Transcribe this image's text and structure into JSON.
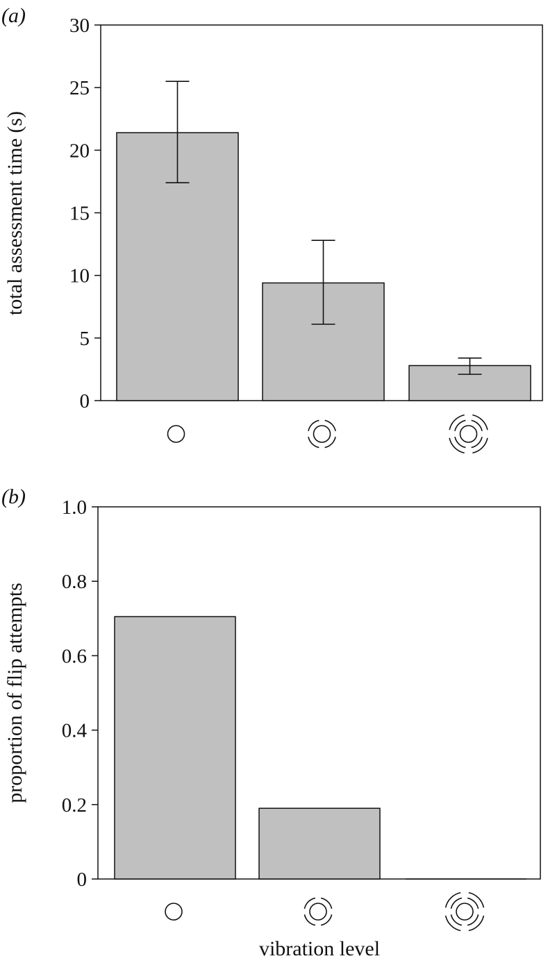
{
  "colors": {
    "bar_fill": "#c0c0c0",
    "stroke": "#111111",
    "background": "#ffffff"
  },
  "chart_data": [
    {
      "type": "bar",
      "panel_label": "(a)",
      "title": "",
      "xlabel": "",
      "ylabel": "total assessment time (s)",
      "categories": [
        "vibration-level-0-icon",
        "vibration-level-1-icon",
        "vibration-level-2-icon"
      ],
      "values": [
        21.4,
        9.4,
        2.8
      ],
      "error_bars": [
        {
          "low": 17.4,
          "high": 25.5
        },
        {
          "low": 6.1,
          "high": 12.8
        },
        {
          "low": 2.1,
          "high": 3.4
        }
      ],
      "ylim": [
        0,
        30
      ],
      "yticks": [
        0,
        5,
        10,
        15,
        20,
        25,
        30
      ],
      "ytick_labels": [
        "0",
        "5",
        "10",
        "15",
        "20",
        "25",
        "30"
      ],
      "grid": false,
      "legend": "none"
    },
    {
      "type": "bar",
      "panel_label": "(b)",
      "title": "",
      "xlabel": "vibration level",
      "ylabel": "proportion of flip attempts",
      "categories": [
        "vibration-level-0-icon",
        "vibration-level-1-icon",
        "vibration-level-2-icon"
      ],
      "values": [
        0.705,
        0.19,
        0.0
      ],
      "ylim": [
        0,
        1.0
      ],
      "yticks": [
        0,
        0.2,
        0.4,
        0.6,
        0.8,
        1.0
      ],
      "ytick_labels": [
        "0",
        "0.2",
        "0.4",
        "0.6",
        "0.8",
        "1.0"
      ],
      "grid": false,
      "legend": "none"
    }
  ]
}
